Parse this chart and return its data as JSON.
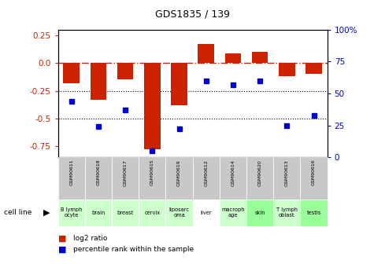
{
  "title": "GDS1835 / 139",
  "samples": [
    "GSM90611",
    "GSM90618",
    "GSM90617",
    "GSM90615",
    "GSM90619",
    "GSM90612",
    "GSM90614",
    "GSM90620",
    "GSM90613",
    "GSM90616"
  ],
  "cell_lines": [
    "B lymph\nocyte",
    "brain",
    "breast",
    "cervix",
    "liposarc\noma",
    "liver",
    "macroph\nage",
    "skin",
    "T lymph\noblast",
    "testis"
  ],
  "cell_line_colors": [
    "#ccffcc",
    "#ccffcc",
    "#ccffcc",
    "#ccffcc",
    "#ccffcc",
    "#ffffff",
    "#ccffcc",
    "#99ff99",
    "#ccffcc",
    "#99ff99"
  ],
  "log2_ratio": [
    -0.18,
    -0.33,
    -0.15,
    -0.78,
    -0.38,
    0.17,
    0.09,
    0.1,
    -0.12,
    -0.1
  ],
  "percentile_rank": [
    44,
    24,
    37,
    5,
    22,
    60,
    57,
    60,
    25,
    33
  ],
  "ylim_left": [
    -0.85,
    0.3
  ],
  "ylim_right": [
    0,
    100
  ],
  "bar_color": "#cc2200",
  "dot_color": "#0000cc",
  "hline_color": "#cc2200",
  "dotted_line_color": "#000000",
  "bg_color": "#ffffff",
  "plot_bg": "#ffffff",
  "tick_label_color_left": "#cc2200",
  "tick_label_color_right": "#0000cc",
  "left_yticks": [
    0.25,
    0.0,
    -0.25,
    -0.5,
    -0.75
  ],
  "right_yticks": [
    100,
    75,
    50,
    25,
    0
  ],
  "dotted_hlines": [
    -0.25,
    -0.5
  ],
  "legend_bar_label": "log2 ratio",
  "legend_dot_label": "percentile rank within the sample",
  "cell_line_label": "cell line"
}
